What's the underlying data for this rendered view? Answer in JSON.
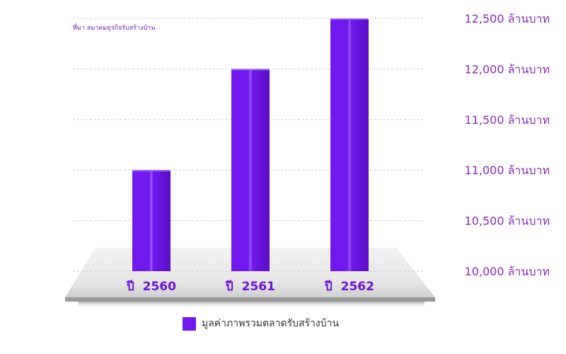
{
  "colors": {
    "bar": "#7118ee",
    "bar_dark": "#5a0fc2",
    "bar_light": "#9a5cff",
    "tick_text": "#8a2bbf",
    "category_text": "#6a14d6",
    "grid": "#cfcfcf"
  },
  "source_note": "ที่มา สมาคมธุรกิจรับสร้างบ้าน",
  "legend": {
    "label": "มูลค่าภาพรวมตลาดรับสร้างบ้าน"
  },
  "chart_data": {
    "type": "bar",
    "categories": [
      "ปี  2560",
      "ปี  2561",
      "ปี  2562"
    ],
    "series": [
      {
        "name": "มูลค่าภาพรวมตลาดรับสร้างบ้าน",
        "values": [
          11000,
          12000,
          12500
        ]
      }
    ],
    "yticks": [
      10000,
      10500,
      11000,
      11500,
      12000,
      12500
    ],
    "ytick_labels": [
      "10,000  ล้านบาท",
      "10,500  ล้านบาท",
      "11,000  ล้านบาท",
      "11,500  ล้านบาท",
      "12,000  ล้านบาท",
      "12,500  ล้านบาท"
    ],
    "ylim": [
      10000,
      12500
    ],
    "grid": true,
    "legend_position": "bottom-center",
    "xlabel": "",
    "ylabel": ""
  }
}
